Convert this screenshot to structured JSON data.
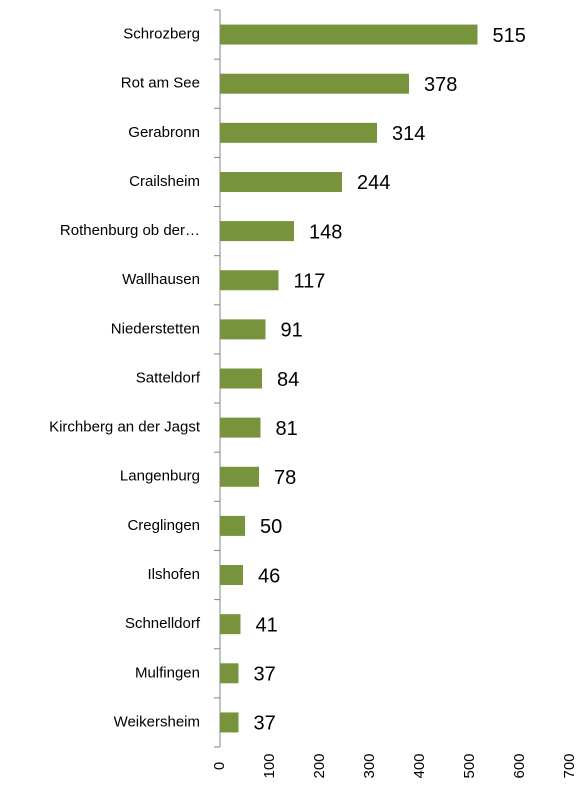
{
  "chart_data": {
    "type": "bar",
    "orientation": "horizontal",
    "categories": [
      "Schrozberg",
      "Rot am See",
      "Gerabronn",
      "Crailsheim",
      "Rothenburg ob der…",
      "Wallhausen",
      "Niederstetten",
      "Satteldorf",
      "Kirchberg an der Jagst",
      "Langenburg",
      "Creglingen",
      "Ilshofen",
      "Schnelldorf",
      "Mulfingen",
      "Weikersheim"
    ],
    "values": [
      515,
      378,
      314,
      244,
      148,
      117,
      91,
      84,
      81,
      78,
      50,
      46,
      41,
      37,
      37
    ],
    "color": "#77933c",
    "xlim": [
      0,
      700
    ],
    "xticks": [
      0,
      100,
      200,
      300,
      400,
      500,
      600,
      700
    ],
    "grid": false
  }
}
